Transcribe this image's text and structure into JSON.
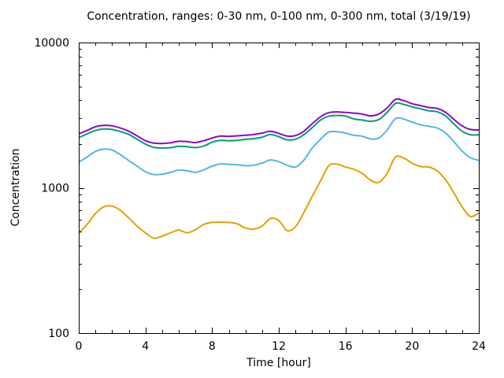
{
  "title": "Concentration, ranges: 0-30 nm, 0-100 nm, 0-300 nm, total (3/19/19)",
  "chart_data": {
    "type": "line",
    "title": "Concentration, ranges: 0-30 nm, 0-100 nm, 0-300 nm, total (3/19/19)",
    "xlabel": "Time [hour]",
    "ylabel": "Concentration",
    "legend": "none",
    "grid": false,
    "x_axis": {
      "min": 0,
      "max": 24,
      "major_ticks": [
        0,
        4,
        8,
        12,
        16,
        20,
        24
      ],
      "tick_labels": [
        "0",
        "4",
        "8",
        "12",
        "16",
        "20",
        "24"
      ],
      "minor_step": 1,
      "scale": "linear"
    },
    "y_axis": {
      "min": 100,
      "max": 10000,
      "major_ticks": [
        100,
        1000,
        10000
      ],
      "tick_labels": [
        "100",
        "1000",
        "10000"
      ],
      "minor_multiples": [
        2,
        3,
        4,
        5,
        6,
        7,
        8,
        9
      ],
      "scale": "log"
    },
    "frame_color": "#000000",
    "text_color": "#000000",
    "x": [
      0,
      0.5,
      1,
      1.5,
      2,
      2.5,
      3,
      3.5,
      4,
      4.5,
      5,
      5.5,
      6,
      6.5,
      7,
      7.5,
      8,
      8.5,
      9,
      9.5,
      10,
      10.5,
      11,
      11.5,
      12,
      12.5,
      13,
      13.5,
      14,
      14.5,
      15,
      15.5,
      16,
      16.5,
      17,
      17.5,
      18,
      18.5,
      19,
      19.5,
      20,
      20.5,
      21,
      21.5,
      22,
      22.5,
      23,
      23.5,
      24
    ],
    "series": [
      {
        "name": "total",
        "color": "#9400d3",
        "values": [
          2350,
          2480,
          2630,
          2690,
          2670,
          2580,
          2450,
          2280,
          2110,
          2030,
          2020,
          2040,
          2090,
          2080,
          2050,
          2110,
          2200,
          2270,
          2260,
          2280,
          2300,
          2330,
          2380,
          2450,
          2370,
          2270,
          2290,
          2450,
          2760,
          3080,
          3290,
          3330,
          3300,
          3270,
          3220,
          3130,
          3220,
          3550,
          4060,
          3980,
          3790,
          3680,
          3570,
          3520,
          3310,
          2960,
          2670,
          2520,
          2500
        ]
      },
      {
        "name": "0-300 nm",
        "color": "#009e73",
        "values": [
          2210,
          2350,
          2480,
          2540,
          2520,
          2440,
          2330,
          2160,
          2000,
          1900,
          1880,
          1890,
          1930,
          1920,
          1890,
          1940,
          2060,
          2120,
          2110,
          2120,
          2155,
          2180,
          2230,
          2330,
          2250,
          2140,
          2160,
          2320,
          2590,
          2920,
          3110,
          3150,
          3120,
          2980,
          2930,
          2870,
          2950,
          3300,
          3810,
          3750,
          3610,
          3500,
          3390,
          3340,
          3130,
          2760,
          2450,
          2320,
          2320
        ]
      },
      {
        "name": "0-100 nm",
        "color": "#56b4e9",
        "values": [
          1500,
          1630,
          1780,
          1845,
          1820,
          1690,
          1540,
          1410,
          1290,
          1235,
          1240,
          1275,
          1325,
          1310,
          1280,
          1330,
          1410,
          1460,
          1450,
          1440,
          1420,
          1430,
          1480,
          1555,
          1515,
          1430,
          1390,
          1550,
          1875,
          2155,
          2420,
          2435,
          2380,
          2300,
          2265,
          2170,
          2200,
          2500,
          2990,
          2970,
          2830,
          2720,
          2650,
          2580,
          2390,
          2080,
          1790,
          1610,
          1545
        ]
      },
      {
        "name": "0-30 nm",
        "color": "#e69f00",
        "values": [
          490,
          560,
          665,
          740,
          748,
          700,
          620,
          545,
          490,
          450,
          465,
          490,
          512,
          490,
          515,
          560,
          578,
          580,
          578,
          565,
          530,
          520,
          545,
          615,
          595,
          508,
          540,
          675,
          870,
          1110,
          1420,
          1455,
          1390,
          1340,
          1260,
          1130,
          1090,
          1260,
          1630,
          1600,
          1480,
          1400,
          1390,
          1310,
          1140,
          925,
          740,
          635,
          670
        ]
      }
    ]
  }
}
